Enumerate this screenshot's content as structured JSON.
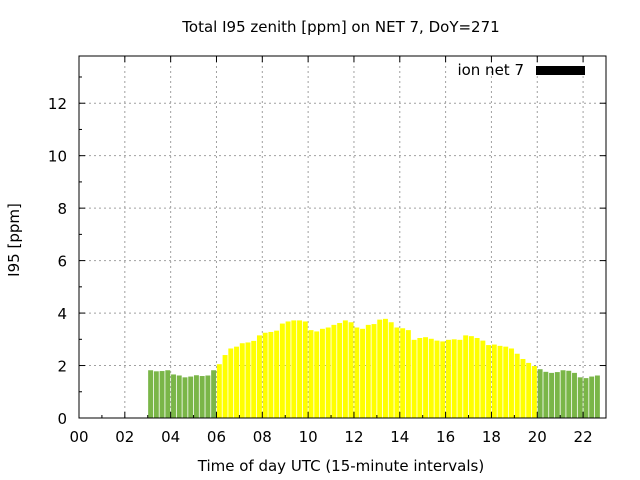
{
  "chart_data": {
    "type": "bar",
    "title": "Total I95 zenith [ppm] on NET 7, DoY=271",
    "xlabel": "Time of day UTC (15-minute intervals)",
    "ylabel": "I95 [ppm]",
    "xlim": [
      0,
      23
    ],
    "ylim": [
      0,
      13.8
    ],
    "x_ticks": [
      "00",
      "02",
      "04",
      "06",
      "08",
      "10",
      "12",
      "14",
      "16",
      "18",
      "20",
      "22"
    ],
    "y_ticks": [
      "0",
      "2",
      "4",
      "6",
      "8",
      "10",
      "12"
    ],
    "grid": true,
    "legend": {
      "position": "top-right",
      "entries": [
        "ion net 7"
      ]
    },
    "bar_interval_hours": 0.25,
    "series": [
      {
        "name": "ion net 7",
        "x_start": 3.0,
        "values": [
          1.82,
          1.78,
          1.79,
          1.82,
          1.66,
          1.62,
          1.55,
          1.58,
          1.63,
          1.6,
          1.62,
          1.82,
          2.05,
          2.4,
          2.65,
          2.72,
          2.85,
          2.88,
          2.94,
          3.15,
          3.25,
          3.28,
          3.33,
          3.6,
          3.68,
          3.72,
          3.72,
          3.68,
          3.35,
          3.3,
          3.4,
          3.45,
          3.55,
          3.62,
          3.72,
          3.65,
          3.45,
          3.4,
          3.55,
          3.58,
          3.75,
          3.78,
          3.65,
          3.45,
          3.42,
          3.35,
          2.98,
          3.05,
          3.08,
          3.02,
          2.95,
          2.92,
          2.98,
          3.0,
          2.98,
          3.15,
          3.12,
          3.05,
          2.95,
          2.78,
          2.8,
          2.75,
          2.72,
          2.65,
          2.45,
          2.25,
          2.1,
          1.98,
          1.86,
          1.76,
          1.72,
          1.75,
          1.82,
          1.8,
          1.72,
          1.55,
          1.52,
          1.58,
          1.62
        ]
      }
    ]
  },
  "colors": {
    "green": "#7ab648",
    "yellow": "#ffff00",
    "legend_swatch": "#000000",
    "grid": "#a0a0a0"
  }
}
